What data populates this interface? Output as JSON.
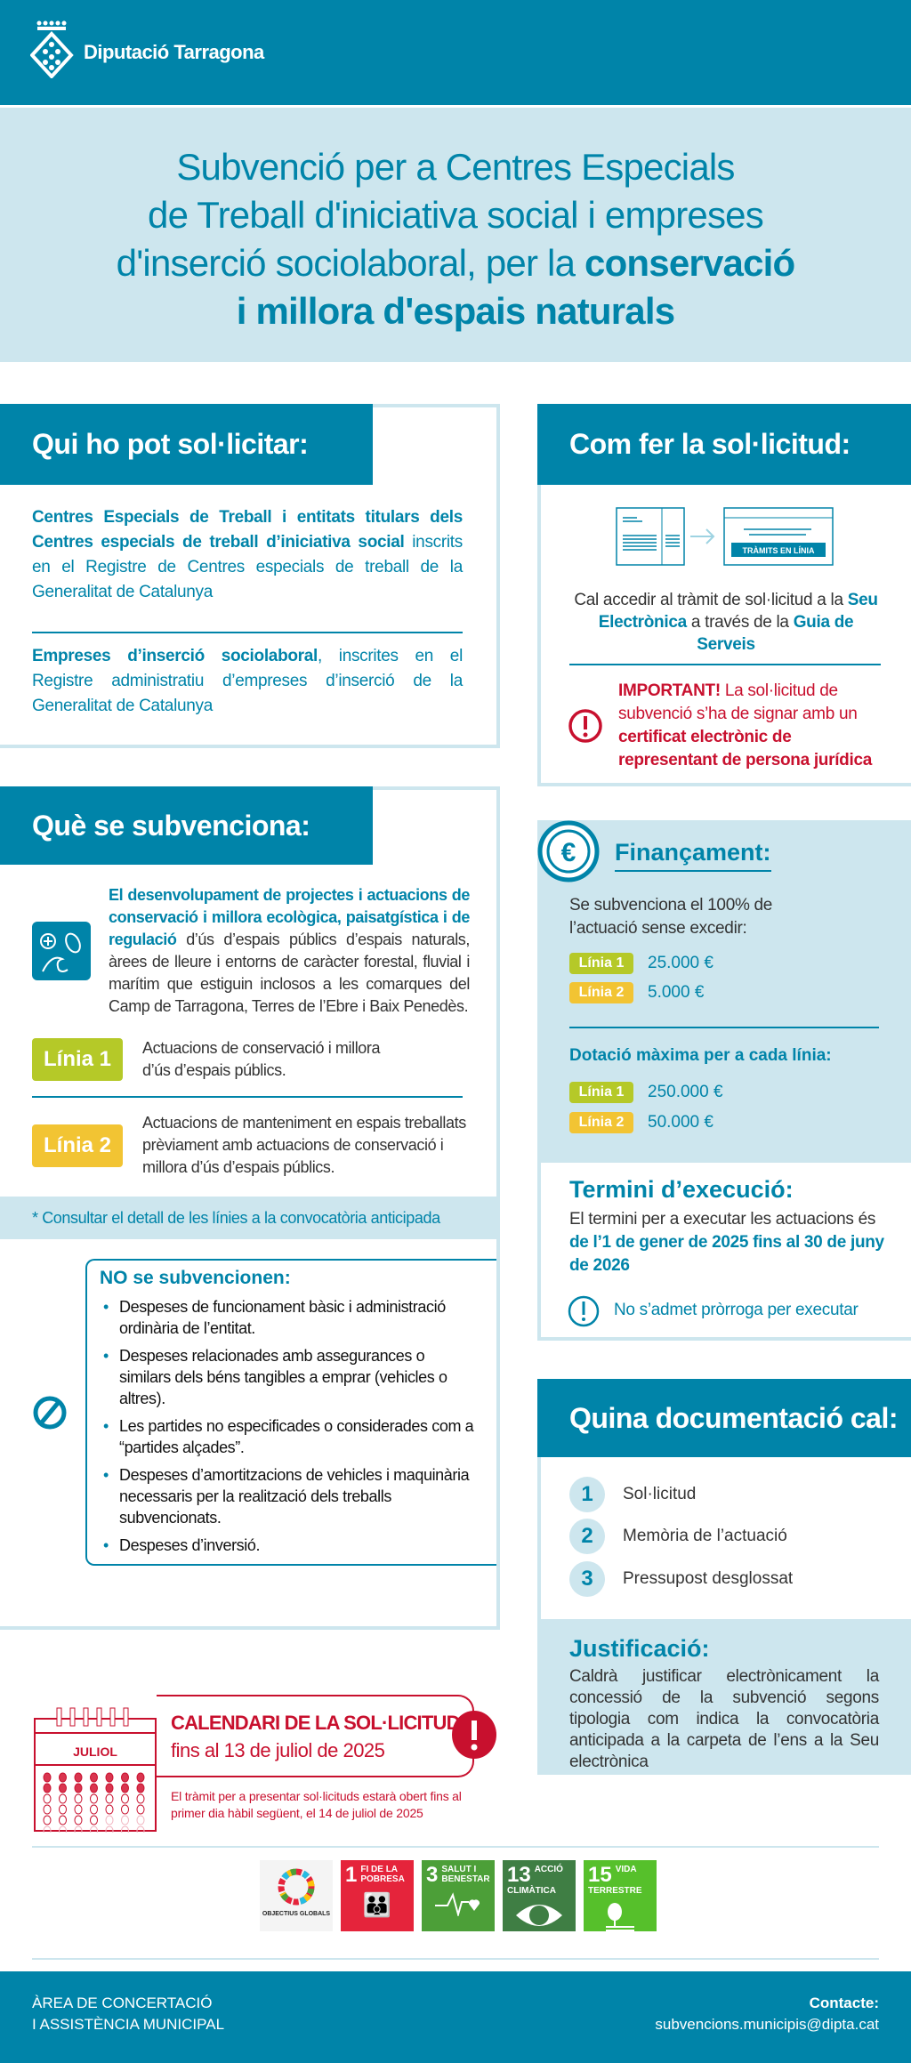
{
  "header": {
    "logo_text": "Diputació Tarragona"
  },
  "title": {
    "line1": "Subvenció per a Centres Especials",
    "line2": "de Treball d'iniciativa social i empreses",
    "line3_regular": "d'inserció sociolaboral, per la ",
    "line3_bold": "conservació",
    "line4_bold": "i millora d'espais naturals"
  },
  "qui": {
    "heading": "Qui ho pot sol·licitar:",
    "p1_bold": "Centres Especials de Treball i entitats titulars dels Centres especials de treball d’iniciativa social",
    "p1_rest": " inscrits en el Registre de Centres especials de treball de la Generalitat de Catalunya",
    "p2_bold": "Empreses d’inserció sociolaboral",
    "p2_rest": ", inscrites en el Registre administratiu d’empreses d’inserció de la Generalitat de Catalunya"
  },
  "com": {
    "heading": "Com fer la sol·licitud:",
    "icon_label": "TRÀMITS EN LÍNIA",
    "t1": "Cal accedir al tràmit de sol·licitud a la ",
    "seu": "Seu Electrònica",
    "t2": " a través de la ",
    "guia": "Guia de Serveis",
    "imp_bold": "IMPORTANT!",
    "imp_t1": " La sol·licitud de subvenció s’ha de signar amb un ",
    "imp_bold2": "certificat electrònic de representant de persona jurídica"
  },
  "que": {
    "heading": "Què se subvenciona:",
    "intro_bold": "El desenvolupament de projectes i actuacions de conservació i millora ecològica, paisatgística i de regulació",
    "intro_rest": " d’ús d’espais públics d’espais naturals, àrees de lleure i entorns de caràcter forestal, fluvial i marítim que estiguin inclosos a les comarques del Camp de Tarragona, Terres de l’Ebre i Baix Penedès.",
    "linia1": "Línia 1",
    "linia1_text": "Actuacions de conservació i millora d’ús d’espais públics.",
    "linia2": "Línia 2",
    "linia2_text": "Actuacions de manteniment en espais treballats prèviament amb actuacions de conservació i millora d’ús d’espais públics.",
    "note": "* Consultar el detall de les línies a la convocatòria anticipada"
  },
  "no": {
    "heading": "NO se subvencionen:",
    "items": [
      "Despeses de funcionament bàsic i administració ordinària de l’entitat.",
      "Despeses relacionades amb assegurances o similars dels béns tangibles a emprar (vehicles o altres).",
      "Les partides no especificades o considerades com a “partides alçades”.",
      "Despeses d’amortitzacions de vehicles i maquinària necessaris per la realització dels treballs subvencionats.",
      "Despeses d’inversió."
    ]
  },
  "financ": {
    "heading": "Finançament:",
    "intro": "Se subvenciona el 100% de l’actuació sense excedir:",
    "l1": "Línia 1",
    "l1_val": "25.000 €",
    "l2": "Línia 2",
    "l2_val": "5.000 €",
    "dot_heading": "Dotació màxima per a cada línia:",
    "d1": "Línia 1",
    "d1_val": "250.000 €",
    "d2": "Línia 2",
    "d2_val": "50.000 €"
  },
  "termini": {
    "heading": "Termini d’execució:",
    "t1": "El termini per a executar les actuacions és ",
    "bold": "de l’1 de gener de 2025 fins al 30 de juny de 2026",
    "warning": "No s’admet pròrroga per executar"
  },
  "docs": {
    "heading": "Quina documentació cal:",
    "items": [
      {
        "n": "1",
        "label": "Sol·licitud"
      },
      {
        "n": "2",
        "label": "Memòria de l’actuació"
      },
      {
        "n": "3",
        "label": "Pressupost desglossat"
      }
    ]
  },
  "just": {
    "heading": "Justificació:",
    "text": "Caldrà justificar electrònicament la concessió de la subvenció segons tipologia com indica la convocatòria anticipada a la carpeta de l’ens a la Seu electrònica"
  },
  "calendar": {
    "month": "JULIOL",
    "title": "CALENDARI DE LA SOL·LICITUD",
    "subtitle": "fins al 13 de juliol de 2025",
    "note": "El tràmit per a presentar sol·licituds estarà obert fins al primer dia hàbil següent, el 14 de juliol de 2025"
  },
  "sdg": {
    "logo_text": "OBJECTIUS GLOBALS",
    "items": [
      {
        "n": "1",
        "label": "FI DE LA POBRESA",
        "color": "#e5243b"
      },
      {
        "n": "3",
        "label": "SALUT I BENESTAR",
        "color": "#4c9f38"
      },
      {
        "n": "13",
        "label": "ACCIÓ CLIMÀTICA",
        "color": "#3f7e44"
      },
      {
        "n": "15",
        "label": "VIDA TERRESTRE",
        "color": "#56c02b"
      }
    ]
  },
  "footer": {
    "area1": "ÀREA DE CONCERTACIÓ",
    "area2": "I ASSISTÈNCIA MUNICIPAL",
    "contact_label": "Contacte:",
    "email": "subvencions.municipis@dipta.cat"
  },
  "colors": {
    "primary": "#0084a9",
    "light": "#cde6ee",
    "linia1": "#b5c928",
    "linia2": "#f2c433",
    "alert": "#c8102e"
  }
}
